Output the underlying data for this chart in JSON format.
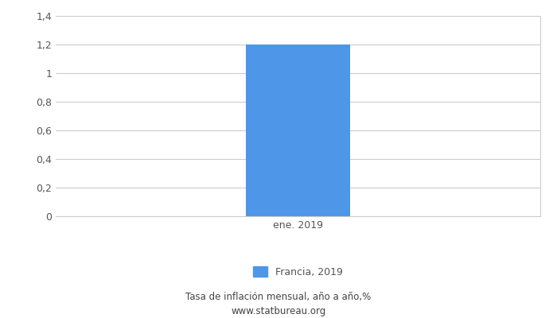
{
  "categories": [
    "ene. 2019"
  ],
  "values": [
    1.2
  ],
  "bar_color": "#4d96e8",
  "ylim": [
    0,
    1.4
  ],
  "yticks": [
    0,
    0.2,
    0.4,
    0.6,
    0.8,
    1.0,
    1.2,
    1.4
  ],
  "ytick_labels": [
    "0",
    "0,2",
    "0,4",
    "0,6",
    "0,8",
    "1",
    "1,2",
    "1,4"
  ],
  "legend_label": "Francia, 2019",
  "footer_line1": "Tasa de inflación mensual, año a año,%",
  "footer_line2": "www.statbureau.org",
  "grid_color": "#cccccc",
  "bar_width": 0.28,
  "background_color": "#ffffff",
  "text_color": "#555555",
  "footer_color": "#444444"
}
